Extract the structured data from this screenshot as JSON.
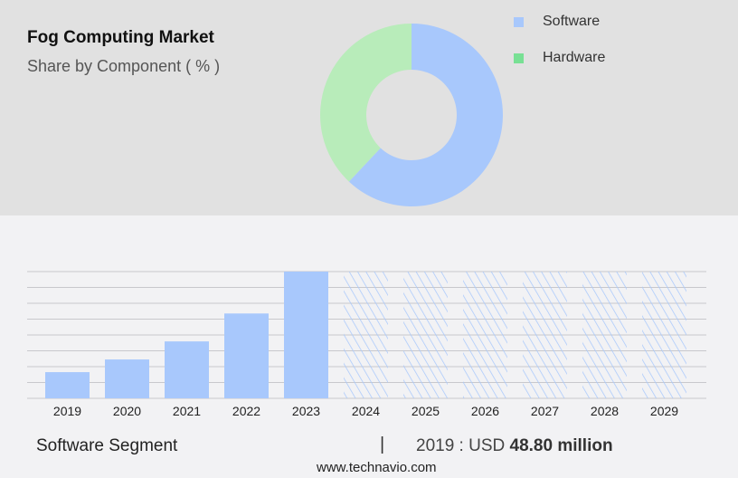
{
  "header": {
    "title": "Fog Computing Market",
    "subtitle": "Share by Component ( % )"
  },
  "colors": {
    "software": "#a8c8fc",
    "hardware_slice": "#b8ecba",
    "hardware_legend": "#78e094"
  },
  "chart_data": [
    {
      "type": "pie",
      "title": "Share by Component ( % )",
      "legend": [
        "Software",
        "Hardware"
      ],
      "values": [
        62,
        38
      ],
      "donut": true,
      "legend_position": "top-right"
    },
    {
      "type": "bar",
      "title": "Software Segment",
      "categories": [
        "2019",
        "2020",
        "2021",
        "2022",
        "2023",
        "2024",
        "2025",
        "2026",
        "2027",
        "2028",
        "2029"
      ],
      "values": [
        48.8,
        72.4,
        106,
        158,
        236,
        null,
        null,
        null,
        null,
        null,
        null
      ],
      "forecast_from": "2024",
      "ylabel": "",
      "xlabel": "",
      "ylim": [
        0,
        236
      ],
      "grid": true
    }
  ],
  "footer": {
    "segment": "Software Segment",
    "separator": "|",
    "stat_prefix": "2019 : USD",
    "stat_value": "48.80 million",
    "site": "www.technavio.com"
  }
}
